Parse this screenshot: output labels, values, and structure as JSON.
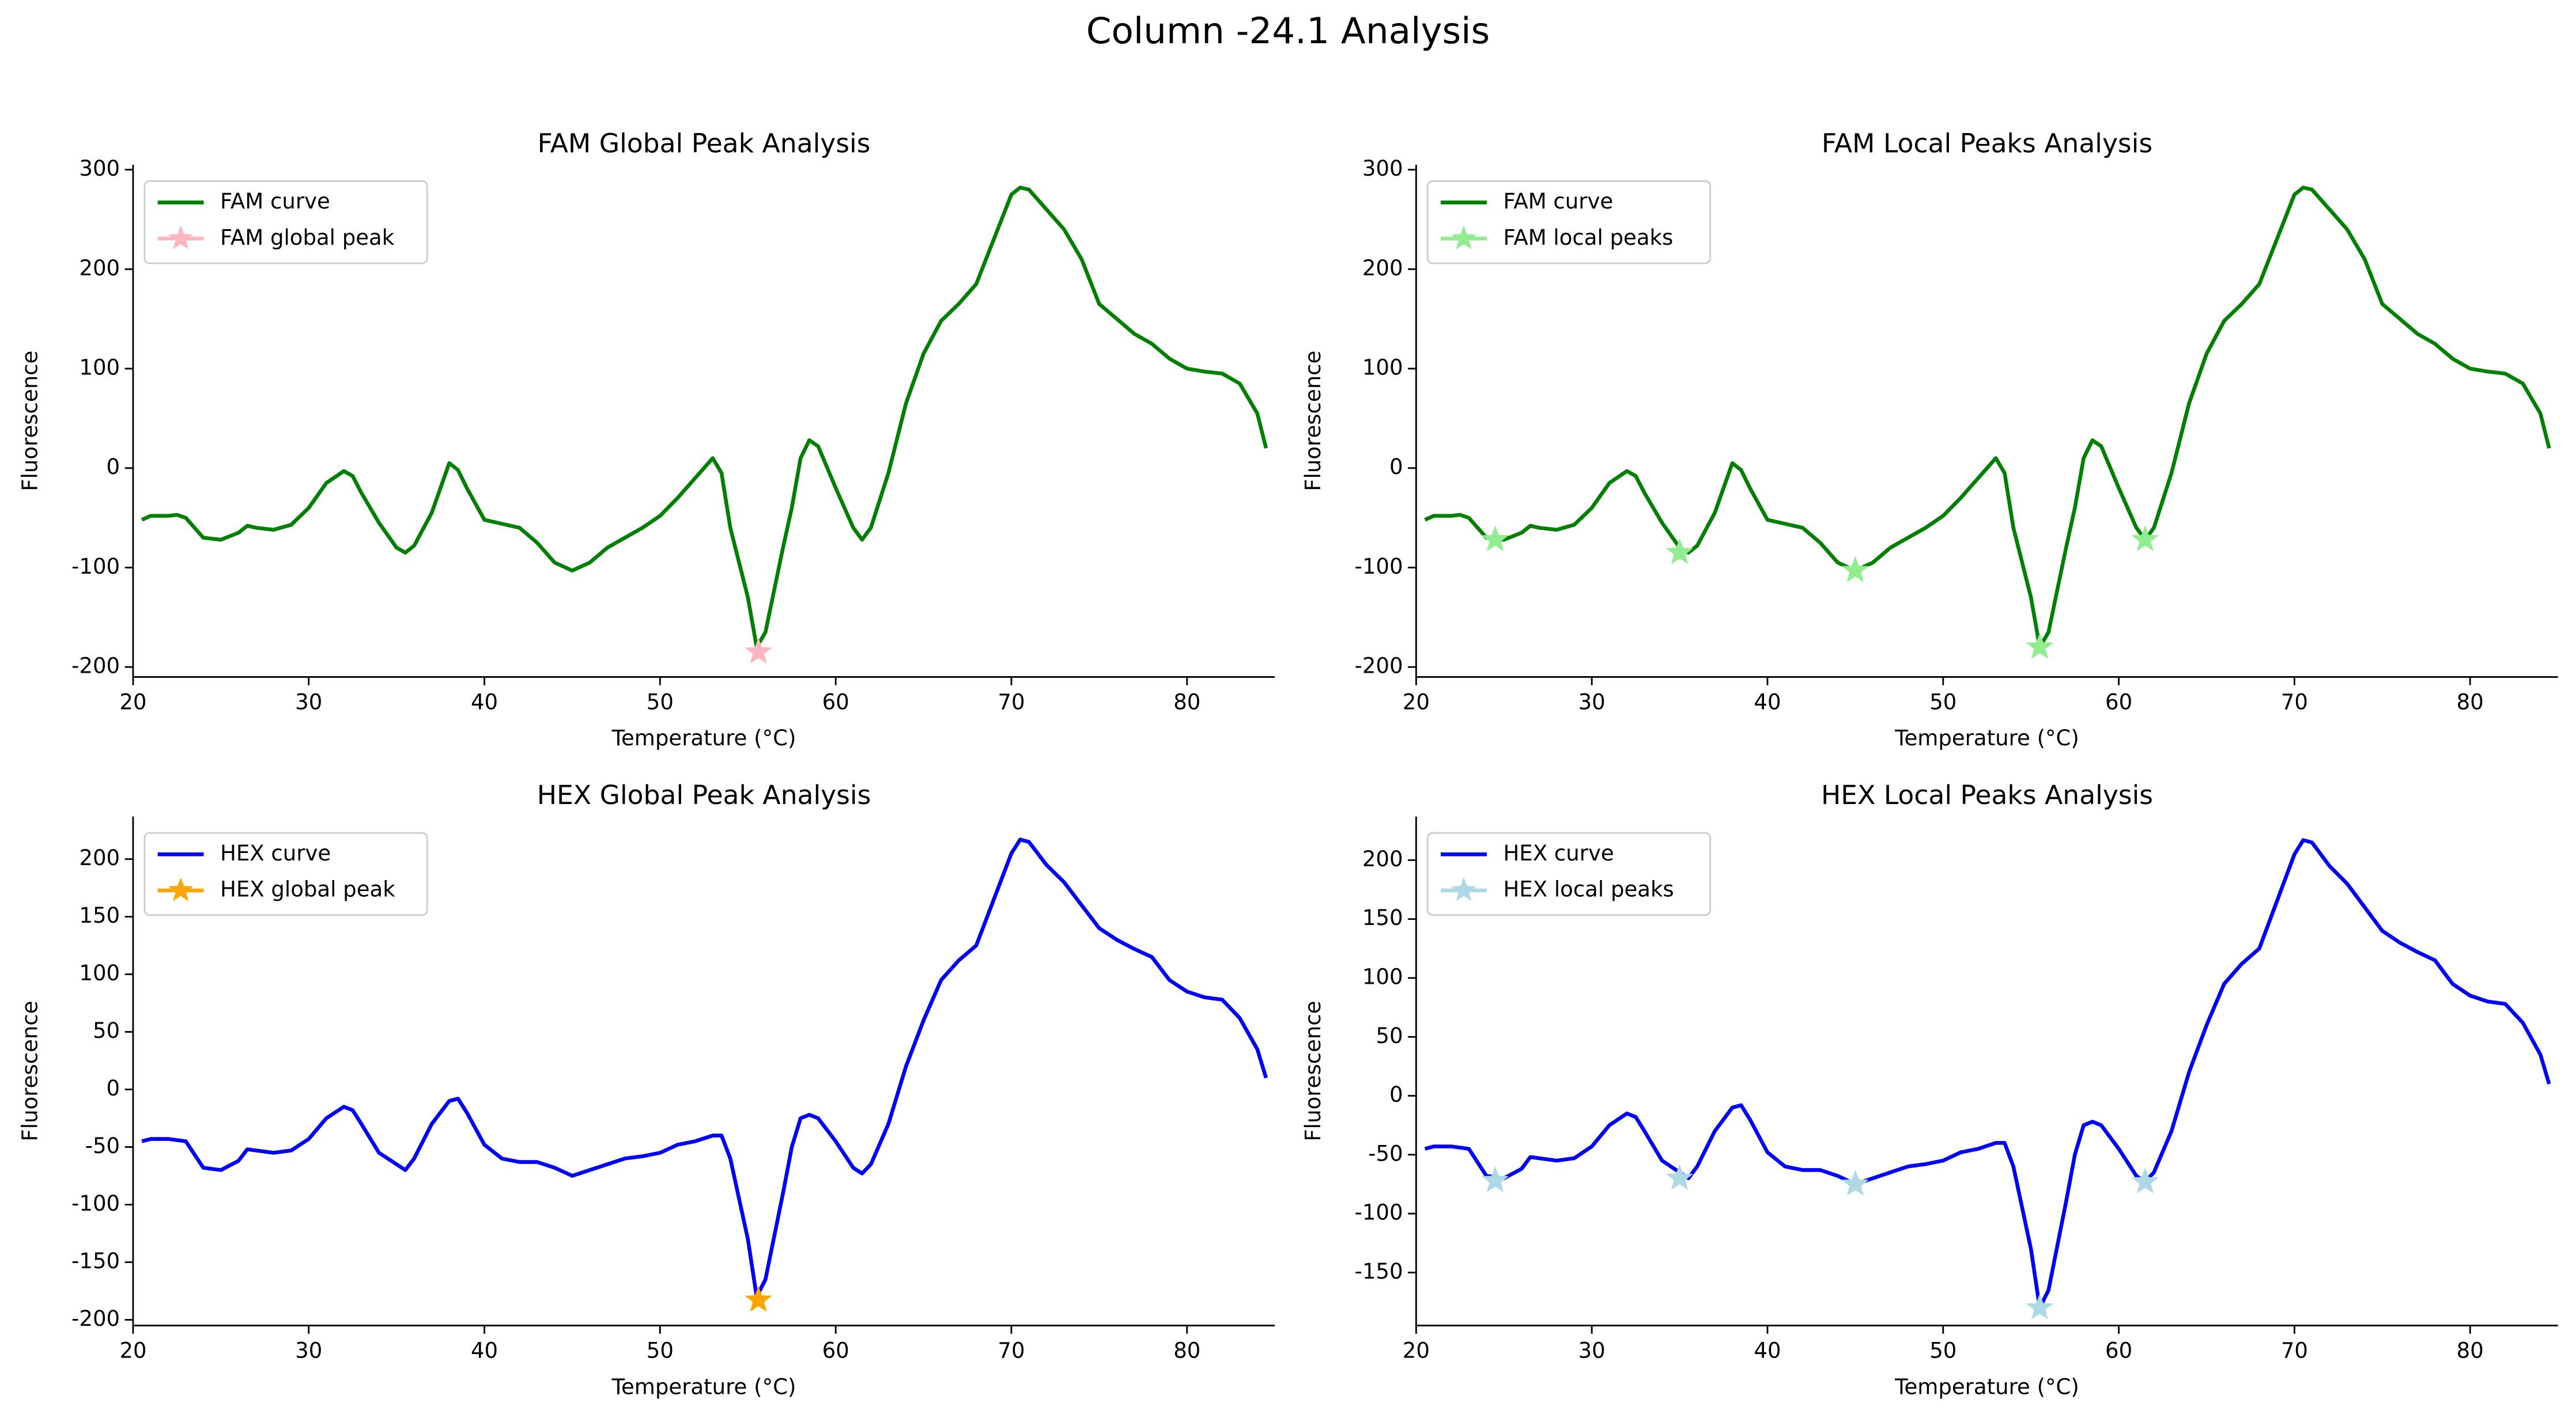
{
  "title": "Column -24.1 Analysis",
  "chart_data": [
    {
      "type": "line",
      "title": "FAM Global Peak Analysis",
      "xlabel": "Temperature (°C)",
      "ylabel": "Fluorescence",
      "xlim": [
        20,
        85
      ],
      "ylim": [
        -210,
        305
      ],
      "xticks": [
        20,
        30,
        40,
        50,
        60,
        70,
        80
      ],
      "yticks": [
        -200,
        -100,
        0,
        100,
        200,
        300
      ],
      "series": [
        {
          "name": "FAM curve",
          "color": "#008000",
          "x": [
            20.5,
            21,
            22,
            22.5,
            23,
            24,
            25,
            26,
            26.5,
            27,
            28,
            29,
            30,
            31,
            32,
            32.5,
            33,
            34,
            35,
            35.5,
            36,
            37,
            38,
            38.5,
            39,
            40,
            41,
            42,
            43,
            44,
            45,
            46,
            47,
            48,
            49,
            50,
            51,
            52,
            53,
            53.5,
            54,
            55,
            55.5,
            56,
            57,
            57.5,
            58,
            58.5,
            59,
            60,
            61,
            61.5,
            62,
            63,
            64,
            65,
            66,
            67,
            68,
            69,
            70,
            70.5,
            71,
            72,
            73,
            74,
            75,
            76,
            77,
            78,
            79,
            80,
            81,
            82,
            83,
            84,
            84.5
          ],
          "values": [
            -52,
            -48,
            -48,
            -47,
            -50,
            -70,
            -72,
            -65,
            -58,
            -60,
            -62,
            -57,
            -40,
            -15,
            -3,
            -8,
            -25,
            -55,
            -80,
            -85,
            -78,
            -45,
            5,
            -2,
            -20,
            -52,
            -56,
            -60,
            -75,
            -95,
            -103,
            -95,
            -80,
            -70,
            -60,
            -48,
            -30,
            -10,
            10,
            -5,
            -60,
            -130,
            -180,
            -165,
            -80,
            -40,
            10,
            28,
            22,
            -20,
            -60,
            -72,
            -60,
            -5,
            65,
            115,
            148,
            165,
            185,
            230,
            275,
            282,
            280,
            260,
            240,
            210,
            165,
            150,
            135,
            125,
            110,
            100,
            97,
            95,
            85,
            55,
            20
          ]
        },
        {
          "name": "FAM global peak",
          "color": "#ffb6c1",
          "marker": "star",
          "x": [
            55.6
          ],
          "values": [
            -185
          ]
        }
      ]
    },
    {
      "type": "line",
      "title": "FAM Local Peaks Analysis",
      "xlabel": "Temperature (°C)",
      "ylabel": "Fluorescence",
      "xlim": [
        20,
        85
      ],
      "ylim": [
        -210,
        305
      ],
      "xticks": [
        20,
        30,
        40,
        50,
        60,
        70,
        80
      ],
      "yticks": [
        -200,
        -100,
        0,
        100,
        200,
        300
      ],
      "series": [
        {
          "name": "FAM curve",
          "color": "#008000",
          "x": [
            20.5,
            21,
            22,
            22.5,
            23,
            24,
            25,
            26,
            26.5,
            27,
            28,
            29,
            30,
            31,
            32,
            32.5,
            33,
            34,
            35,
            35.5,
            36,
            37,
            38,
            38.5,
            39,
            40,
            41,
            42,
            43,
            44,
            45,
            46,
            47,
            48,
            49,
            50,
            51,
            52,
            53,
            53.5,
            54,
            55,
            55.5,
            56,
            57,
            57.5,
            58,
            58.5,
            59,
            60,
            61,
            61.5,
            62,
            63,
            64,
            65,
            66,
            67,
            68,
            69,
            70,
            70.5,
            71,
            72,
            73,
            74,
            75,
            76,
            77,
            78,
            79,
            80,
            81,
            82,
            83,
            84,
            84.5
          ],
          "values": [
            -52,
            -48,
            -48,
            -47,
            -50,
            -70,
            -72,
            -65,
            -58,
            -60,
            -62,
            -57,
            -40,
            -15,
            -3,
            -8,
            -25,
            -55,
            -80,
            -85,
            -78,
            -45,
            5,
            -2,
            -20,
            -52,
            -56,
            -60,
            -75,
            -95,
            -103,
            -95,
            -80,
            -70,
            -60,
            -48,
            -30,
            -10,
            10,
            -5,
            -60,
            -130,
            -180,
            -165,
            -80,
            -40,
            10,
            28,
            22,
            -20,
            -60,
            -72,
            -60,
            -5,
            65,
            115,
            148,
            165,
            185,
            230,
            275,
            282,
            280,
            260,
            240,
            210,
            165,
            150,
            135,
            125,
            110,
            100,
            97,
            95,
            85,
            55,
            20
          ]
        },
        {
          "name": "FAM local peaks",
          "color": "#90ee90",
          "marker": "star",
          "x": [
            24.5,
            35,
            45,
            55.5,
            61.5
          ],
          "values": [
            -72,
            -85,
            -103,
            -180,
            -72
          ]
        }
      ]
    },
    {
      "type": "line",
      "title": "HEX Global Peak Analysis",
      "xlabel": "Temperature (°C)",
      "ylabel": "Fluorescence",
      "xlim": [
        20,
        85
      ],
      "ylim": [
        -205,
        237
      ],
      "xticks": [
        20,
        30,
        40,
        50,
        60,
        70,
        80
      ],
      "yticks": [
        -200,
        -150,
        -100,
        -50,
        0,
        50,
        100,
        150,
        200
      ],
      "series": [
        {
          "name": "HEX curve",
          "color": "#0000ff",
          "x": [
            20.5,
            21,
            22,
            23,
            24,
            25,
            26,
            26.5,
            27,
            28,
            29,
            30,
            31,
            32,
            32.5,
            33,
            34,
            35,
            35.5,
            36,
            37,
            38,
            38.5,
            39,
            40,
            41,
            42,
            43,
            44,
            45,
            46,
            47,
            48,
            49,
            50,
            51,
            52,
            53,
            53.5,
            54,
            55,
            55.5,
            56,
            57,
            57.5,
            58,
            58.5,
            59,
            60,
            61,
            61.5,
            62,
            63,
            64,
            65,
            66,
            67,
            68,
            69,
            70,
            70.5,
            71,
            72,
            73,
            74,
            75,
            76,
            77,
            78,
            79,
            80,
            81,
            82,
            83,
            84,
            84.5
          ],
          "values": [
            -45,
            -43,
            -43,
            -45,
            -68,
            -70,
            -62,
            -52,
            -53,
            -55,
            -53,
            -43,
            -25,
            -15,
            -18,
            -30,
            -55,
            -65,
            -70,
            -60,
            -30,
            -10,
            -8,
            -20,
            -48,
            -60,
            -63,
            -63,
            -68,
            -75,
            -70,
            -65,
            -60,
            -58,
            -55,
            -48,
            -45,
            -40,
            -40,
            -60,
            -130,
            -180,
            -165,
            -90,
            -50,
            -25,
            -22,
            -25,
            -45,
            -68,
            -73,
            -65,
            -30,
            20,
            60,
            95,
            112,
            125,
            165,
            205,
            217,
            215,
            195,
            180,
            160,
            140,
            130,
            122,
            115,
            95,
            85,
            80,
            78,
            62,
            35,
            10
          ]
        },
        {
          "name": "HEX global peak",
          "color": "#ffa500",
          "marker": "star",
          "x": [
            55.6
          ],
          "values": [
            -183
          ]
        }
      ]
    },
    {
      "type": "line",
      "title": "HEX Local Peaks Analysis",
      "xlabel": "Temperature (°C)",
      "ylabel": "Fluorescence",
      "xlim": [
        20,
        85
      ],
      "ylim": [
        -195,
        237
      ],
      "xticks": [
        20,
        30,
        40,
        50,
        60,
        70,
        80
      ],
      "yticks": [
        -150,
        -100,
        -50,
        0,
        50,
        100,
        150,
        200
      ],
      "series": [
        {
          "name": "HEX curve",
          "color": "#0000ff",
          "x": [
            20.5,
            21,
            22,
            23,
            24,
            25,
            26,
            26.5,
            27,
            28,
            29,
            30,
            31,
            32,
            32.5,
            33,
            34,
            35,
            35.5,
            36,
            37,
            38,
            38.5,
            39,
            40,
            41,
            42,
            43,
            44,
            45,
            46,
            47,
            48,
            49,
            50,
            51,
            52,
            53,
            53.5,
            54,
            55,
            55.5,
            56,
            57,
            57.5,
            58,
            58.5,
            59,
            60,
            61,
            61.5,
            62,
            63,
            64,
            65,
            66,
            67,
            68,
            69,
            70,
            70.5,
            71,
            72,
            73,
            74,
            75,
            76,
            77,
            78,
            79,
            80,
            81,
            82,
            83,
            84,
            84.5
          ],
          "values": [
            -45,
            -43,
            -43,
            -45,
            -68,
            -70,
            -62,
            -52,
            -53,
            -55,
            -53,
            -43,
            -25,
            -15,
            -18,
            -30,
            -55,
            -65,
            -70,
            -60,
            -30,
            -10,
            -8,
            -20,
            -48,
            -60,
            -63,
            -63,
            -68,
            -75,
            -70,
            -65,
            -60,
            -58,
            -55,
            -48,
            -45,
            -40,
            -40,
            -60,
            -130,
            -180,
            -165,
            -90,
            -50,
            -25,
            -22,
            -25,
            -45,
            -68,
            -73,
            -65,
            -30,
            20,
            60,
            95,
            112,
            125,
            165,
            205,
            217,
            215,
            195,
            180,
            160,
            140,
            130,
            122,
            115,
            95,
            85,
            80,
            78,
            62,
            35,
            10
          ]
        },
        {
          "name": "HEX local peaks",
          "color": "#add8e6",
          "marker": "star",
          "x": [
            24.5,
            35,
            45,
            55.5,
            61.5
          ],
          "values": [
            -72,
            -70,
            -75,
            -180,
            -73
          ]
        }
      ]
    }
  ]
}
